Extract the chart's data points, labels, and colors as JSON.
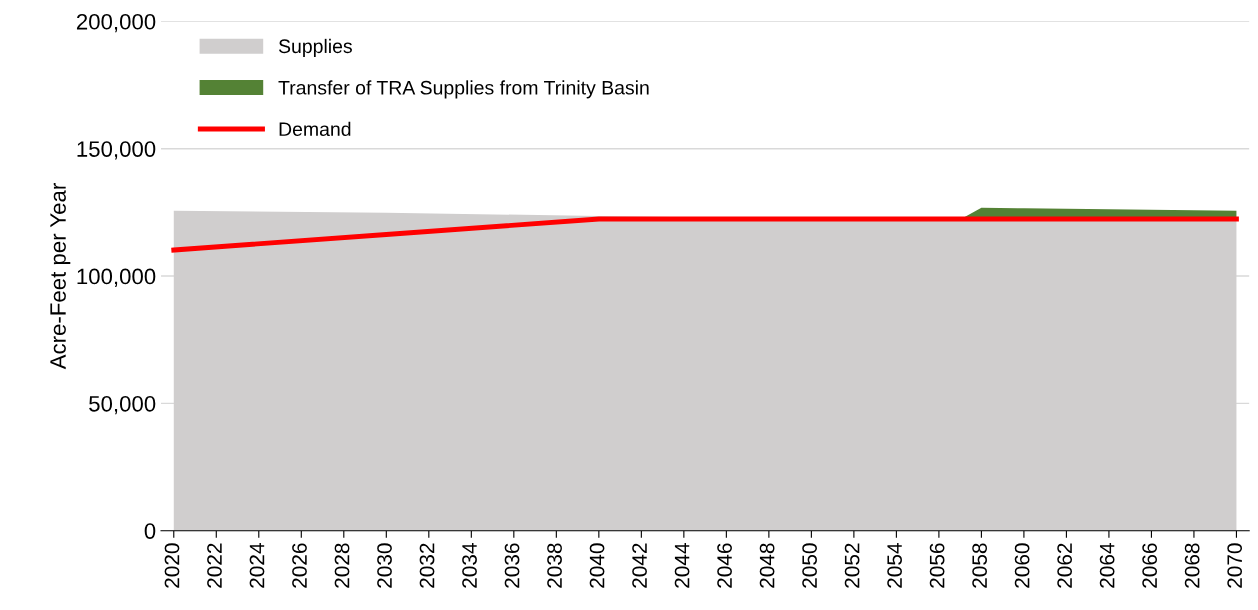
{
  "chart_data": {
    "type": "area",
    "stacked": true,
    "ylabel": "Acre-Feet per Year",
    "x": [
      2020,
      2030,
      2040,
      2050,
      2057,
      2058,
      2060,
      2070
    ],
    "series": [
      {
        "name": "Supplies",
        "color": "#d0cece",
        "values": [
          125600,
          124800,
          123600,
          122400,
          122200,
          122200,
          122200,
          122200
        ]
      },
      {
        "name": "Transfer of TRA Supplies from Trinity Basin",
        "color": "#548235",
        "values": [
          0,
          0,
          0,
          0,
          0,
          4600,
          4400,
          3400
        ]
      },
      {
        "name": "Demand",
        "type": "line",
        "color": "#ff0000",
        "x": [
          2020,
          2030,
          2040,
          2070
        ],
        "values": [
          110200,
          116300,
          122400,
          122400
        ]
      }
    ],
    "xlim": [
      2019.4,
      2070.6
    ],
    "xticks": [
      2020,
      2022,
      2024,
      2026,
      2028,
      2030,
      2032,
      2034,
      2036,
      2038,
      2040,
      2042,
      2044,
      2046,
      2048,
      2050,
      2052,
      2054,
      2056,
      2058,
      2060,
      2062,
      2064,
      2066,
      2068,
      2070
    ],
    "ylim": [
      0,
      200000
    ],
    "yticks": [
      {
        "value": 0,
        "label": "0"
      },
      {
        "value": 50000,
        "label": "50,000"
      },
      {
        "value": 100000,
        "label": "100,000"
      },
      {
        "value": 150000,
        "label": "150,000"
      },
      {
        "value": 200000,
        "label": "200,000"
      }
    ],
    "grid": "y",
    "legend": "top left"
  }
}
